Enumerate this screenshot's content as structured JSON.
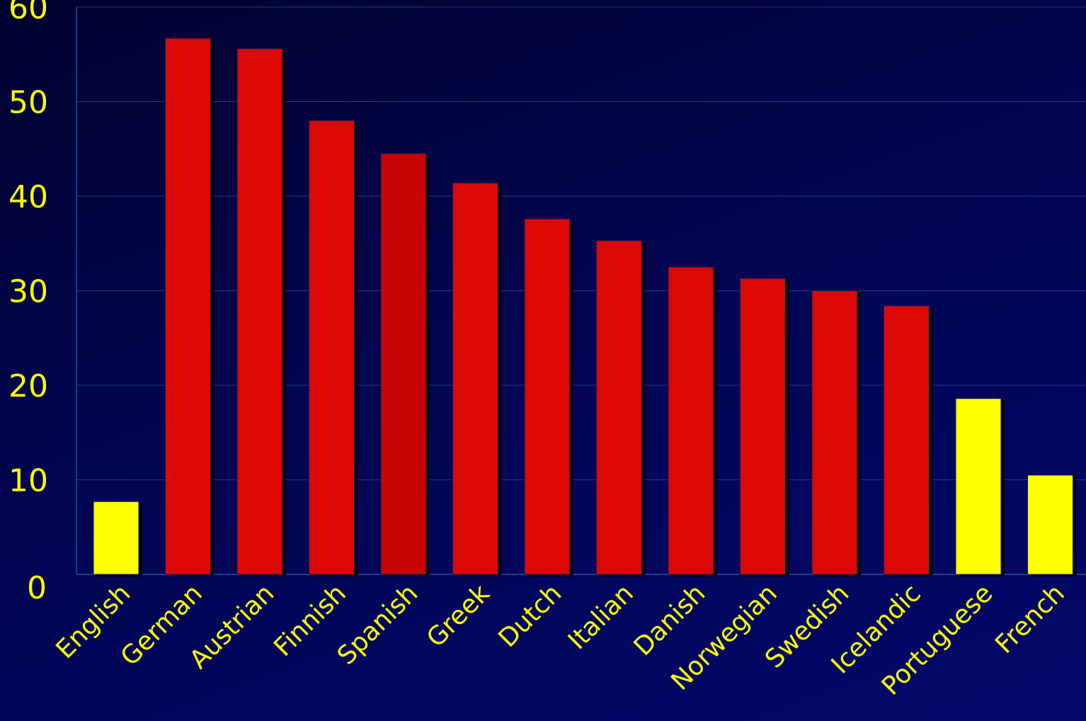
{
  "chart_data": {
    "type": "bar",
    "title": "",
    "xlabel": "",
    "ylabel": "",
    "ylim": [
      0,
      60
    ],
    "yticks": [
      0,
      10,
      20,
      30,
      40,
      50,
      60
    ],
    "grid": true,
    "legend": "none",
    "categories": [
      "English",
      "German",
      "Austrian",
      "Finnish",
      "Spanish",
      "Greek",
      "Dutch",
      "Italian",
      "Danish",
      "Norwegian",
      "Swedish",
      "Icelandic",
      "Portuguese",
      "French"
    ],
    "values": [
      7.7,
      56.7,
      55.6,
      48.0,
      44.5,
      41.4,
      37.6,
      35.3,
      32.5,
      31.3,
      30.0,
      28.4,
      18.6,
      10.5
    ],
    "bar_colors": [
      "#ffff00",
      "#dc0805",
      "#dc0805",
      "#dc0805",
      "#c80404",
      "#dc0805",
      "#dc0805",
      "#dc0805",
      "#dc0805",
      "#dc0805",
      "#dc0805",
      "#dc0805",
      "#ffff00",
      "#ffff00"
    ],
    "colors": {
      "background": "#020650",
      "text": "#ffff00",
      "grid": "#1c3c8c",
      "shadow": "#000000"
    }
  }
}
